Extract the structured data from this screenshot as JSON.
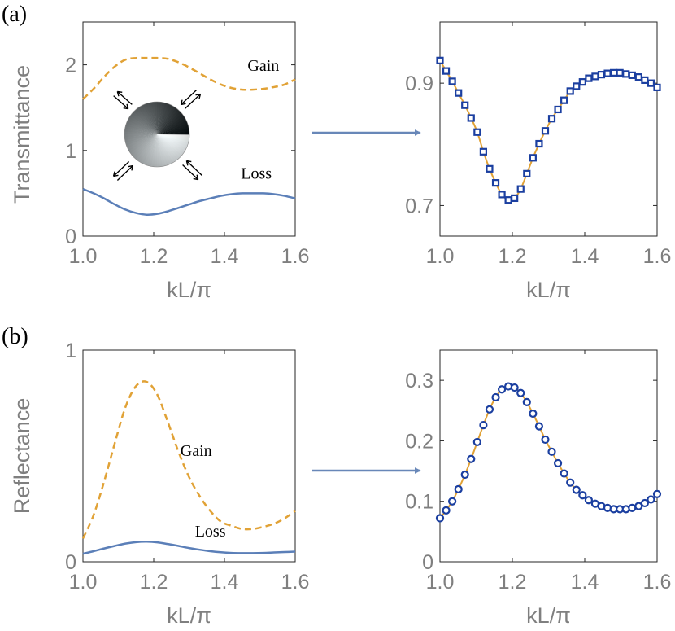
{
  "colors": {
    "gain": "#e1a236",
    "loss": "#5b7fb8",
    "marker": "#1b3fa0",
    "arrow": "#6887b8",
    "fit": "#e1a236"
  },
  "panel_labels": [
    "(a)",
    "(b)"
  ],
  "chart_data": [
    {
      "id": "a-left",
      "type": "line",
      "xlabel": "kL/π",
      "ylabel": "Transmittance",
      "xlim": [
        1.0,
        1.6
      ],
      "ylim": [
        0,
        2.5
      ],
      "xticks": [
        1.0,
        1.2,
        1.4,
        1.6
      ],
      "xticklabels": [
        "1.0",
        "1.2",
        "1.4",
        "1.6"
      ],
      "yticks": [
        0,
        1,
        2
      ],
      "yticklabels": [
        "0",
        "1",
        "2"
      ],
      "grid": false,
      "series": [
        {
          "name": "Gain",
          "style": "dashed",
          "x": [
            1.0,
            1.03,
            1.06,
            1.09,
            1.12,
            1.15,
            1.18,
            1.21,
            1.24,
            1.27,
            1.3,
            1.33,
            1.36,
            1.39,
            1.42,
            1.45,
            1.48,
            1.51,
            1.54,
            1.57,
            1.6
          ],
          "y": [
            1.6,
            1.72,
            1.86,
            1.98,
            2.06,
            2.08,
            2.08,
            2.08,
            2.07,
            2.03,
            1.97,
            1.9,
            1.83,
            1.77,
            1.73,
            1.71,
            1.71,
            1.72,
            1.74,
            1.77,
            1.83
          ]
        },
        {
          "name": "Loss",
          "style": "solid",
          "x": [
            1.0,
            1.03,
            1.06,
            1.09,
            1.12,
            1.15,
            1.18,
            1.21,
            1.24,
            1.27,
            1.3,
            1.33,
            1.36,
            1.39,
            1.42,
            1.45,
            1.48,
            1.51,
            1.54,
            1.57,
            1.6
          ],
          "y": [
            0.55,
            0.5,
            0.44,
            0.37,
            0.31,
            0.27,
            0.25,
            0.26,
            0.29,
            0.33,
            0.37,
            0.41,
            0.44,
            0.47,
            0.49,
            0.5,
            0.5,
            0.5,
            0.49,
            0.47,
            0.44
          ]
        }
      ],
      "annotations": [
        {
          "text": "Gain",
          "x": 1.51,
          "y": 1.93
        },
        {
          "text": "Loss",
          "x": 1.49,
          "y": 0.67
        }
      ]
    },
    {
      "id": "a-right",
      "type": "scatter",
      "xlim": [
        1.0,
        1.6
      ],
      "ylim": [
        0.65,
        1.0
      ],
      "xlabel": "kL/π",
      "ylabel": "",
      "xticks": [
        1.0,
        1.2,
        1.4,
        1.6
      ],
      "xticklabels": [
        "1.0",
        "1.2",
        "1.4",
        "1.6"
      ],
      "yticks": [
        0.7,
        0.9
      ],
      "yticklabels": [
        "0.7",
        "0.9"
      ],
      "grid": false,
      "marker": "square",
      "x": [
        1.0,
        1.017,
        1.034,
        1.051,
        1.069,
        1.086,
        1.103,
        1.12,
        1.137,
        1.154,
        1.171,
        1.189,
        1.206,
        1.223,
        1.24,
        1.257,
        1.274,
        1.291,
        1.309,
        1.326,
        1.343,
        1.36,
        1.377,
        1.394,
        1.411,
        1.429,
        1.446,
        1.463,
        1.48,
        1.497,
        1.514,
        1.531,
        1.549,
        1.566,
        1.583,
        1.6
      ],
      "y": [
        0.937,
        0.92,
        0.903,
        0.884,
        0.864,
        0.843,
        0.82,
        0.788,
        0.76,
        0.737,
        0.718,
        0.709,
        0.712,
        0.727,
        0.752,
        0.778,
        0.801,
        0.822,
        0.842,
        0.857,
        0.872,
        0.887,
        0.895,
        0.902,
        0.908,
        0.911,
        0.914,
        0.916,
        0.917,
        0.917,
        0.915,
        0.913,
        0.91,
        0.905,
        0.9,
        0.893
      ]
    },
    {
      "id": "b-left",
      "type": "line",
      "xlabel": "kL/π",
      "ylabel": "Reflectance",
      "xlim": [
        1.0,
        1.6
      ],
      "ylim": [
        0,
        1
      ],
      "xticks": [
        1.0,
        1.2,
        1.4,
        1.6
      ],
      "xticklabels": [
        "1.0",
        "1.2",
        "1.4",
        "1.6"
      ],
      "yticks": [
        0,
        1
      ],
      "yticklabels": [
        "0",
        "1"
      ],
      "grid": false,
      "series": [
        {
          "name": "Gain",
          "style": "dashed",
          "x": [
            1.0,
            1.03,
            1.06,
            1.09,
            1.12,
            1.15,
            1.18,
            1.21,
            1.24,
            1.27,
            1.3,
            1.33,
            1.36,
            1.39,
            1.42,
            1.45,
            1.48,
            1.51,
            1.54,
            1.57,
            1.6
          ],
          "y": [
            0.11,
            0.22,
            0.38,
            0.56,
            0.73,
            0.83,
            0.85,
            0.79,
            0.66,
            0.52,
            0.4,
            0.31,
            0.24,
            0.19,
            0.17,
            0.155,
            0.155,
            0.165,
            0.18,
            0.205,
            0.24
          ]
        },
        {
          "name": "Loss",
          "style": "solid",
          "x": [
            1.0,
            1.03,
            1.06,
            1.09,
            1.12,
            1.15,
            1.18,
            1.21,
            1.24,
            1.27,
            1.3,
            1.33,
            1.36,
            1.39,
            1.42,
            1.45,
            1.48,
            1.51,
            1.54,
            1.57,
            1.6
          ],
          "y": [
            0.038,
            0.05,
            0.063,
            0.075,
            0.086,
            0.093,
            0.095,
            0.092,
            0.084,
            0.075,
            0.065,
            0.057,
            0.05,
            0.045,
            0.042,
            0.041,
            0.041,
            0.042,
            0.044,
            0.046,
            0.048
          ]
        }
      ],
      "annotations": [
        {
          "text": "Gain",
          "x": 1.32,
          "y": 0.5
        },
        {
          "text": "Loss",
          "x": 1.36,
          "y": 0.12
        }
      ]
    },
    {
      "id": "b-right",
      "type": "scatter",
      "xlim": [
        1.0,
        1.6
      ],
      "ylim": [
        0,
        0.35
      ],
      "xlabel": "kL/π",
      "ylabel": "",
      "xticks": [
        1.0,
        1.2,
        1.4,
        1.6
      ],
      "xticklabels": [
        "1.0",
        "1.2",
        "1.4",
        "1.6"
      ],
      "yticks": [
        0,
        0.1,
        0.2,
        0.3
      ],
      "yticklabels": [
        "0",
        "0.1",
        "0.2",
        "0.3"
      ],
      "grid": false,
      "marker": "circle",
      "x": [
        1.0,
        1.017,
        1.034,
        1.051,
        1.069,
        1.086,
        1.103,
        1.12,
        1.137,
        1.154,
        1.171,
        1.189,
        1.206,
        1.223,
        1.24,
        1.257,
        1.274,
        1.291,
        1.309,
        1.326,
        1.343,
        1.36,
        1.377,
        1.394,
        1.411,
        1.429,
        1.446,
        1.463,
        1.48,
        1.497,
        1.514,
        1.531,
        1.549,
        1.566,
        1.583,
        1.6
      ],
      "y": [
        0.072,
        0.085,
        0.1,
        0.12,
        0.144,
        0.17,
        0.198,
        0.226,
        0.252,
        0.272,
        0.285,
        0.29,
        0.288,
        0.279,
        0.264,
        0.245,
        0.224,
        0.202,
        0.182,
        0.163,
        0.146,
        0.131,
        0.119,
        0.11,
        0.102,
        0.096,
        0.092,
        0.089,
        0.087,
        0.087,
        0.087,
        0.089,
        0.092,
        0.097,
        0.103,
        0.112
      ]
    }
  ]
}
